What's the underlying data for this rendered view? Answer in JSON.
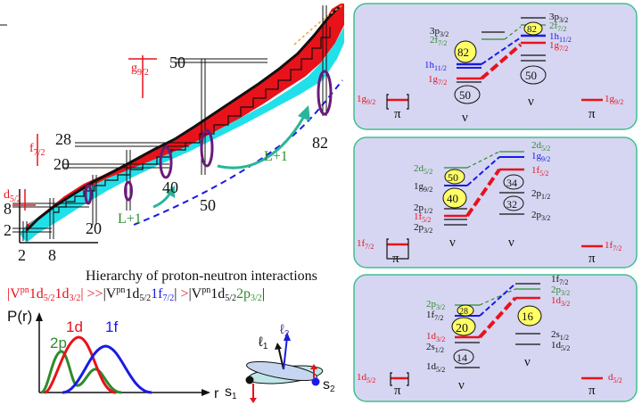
{
  "colors": {
    "red": "#e8121b",
    "blue": "#1a1ae6",
    "green": "#2e8b2e",
    "cyan": "#22e0ea",
    "purple": "#6a1a7a",
    "teal": "#2ab59a",
    "panel_fill": "#d6d6f2",
    "panel_border": "#3fbf8f",
    "yellow": "#ffff66"
  },
  "chart": {
    "magic_numbers": [
      "2",
      "8",
      "20",
      "28",
      "50",
      "82"
    ],
    "axis_left": [
      "2",
      "8",
      "20"
    ],
    "axis_bottom": [
      "2",
      "8",
      "20"
    ],
    "magic_28": "28",
    "magic_20_side": "20",
    "magic_50_top": "50",
    "magic_40": "40",
    "magic_50_bottom": "50",
    "magic_82": "82",
    "orbital_g92": "g",
    "orbital_g92_sub": "9/2",
    "orbital_f72": "f",
    "orbital_f72_sub": "7/2",
    "orbital_d52": "d",
    "orbital_d52_sub": "5/2",
    "lplus1_a": "L+1",
    "lplus1_b": "L+1"
  },
  "hierarchy": {
    "title": "Hierarchy of proton-neutron interactions",
    "bar": "|",
    "V": "V",
    "pn": "pn",
    "t1_a": "1d",
    "t1_a_sub": "5/2",
    "t1_b": "1d",
    "t1_b_sub": "3/2",
    "gg": ">>",
    "t2_a": "1d",
    "t2_a_sub": "5/2",
    "t2_b": "1f",
    "t2_b_sub": "7/2",
    "gt": ">",
    "t3_a": "1d",
    "t3_a_sub": "5/2",
    "t3_b": "2p",
    "t3_b_sub": "3/2"
  },
  "radial": {
    "ylabel": "P(r)",
    "xlabel": "r",
    "labels": [
      "2p",
      "1d",
      "1f"
    ]
  },
  "spin": {
    "l1": "ℓ",
    "l1_sub": "1",
    "l2": "ℓ",
    "l2_sub": "2",
    "s1": "s",
    "s1_sub": "1",
    "s2": "s",
    "s2_sub": "2"
  },
  "panel1": {
    "pi_left": "π",
    "pi_right": "π",
    "nu_left": "ν",
    "nu_right": "ν",
    "left_pi_level": "1g",
    "left_pi_level_sub": "9/2",
    "right_pi_level": "1g",
    "right_pi_level_sub": "9/2",
    "l_3p": "3p",
    "l_3p_sub": "3/2",
    "l_2f": "2f",
    "l_2f_sub": "7/2",
    "l_1h": "1h",
    "l_1h_sub": "11/2",
    "l_1g": "1g",
    "l_1g_sub": "7/2",
    "r_3p": "3p",
    "r_3p_sub": "3/2",
    "r_2f": "2f",
    "r_2f_sub": "7/2",
    "r_1h": "1h",
    "r_1h_sub": "11/2",
    "r_1g": "1g",
    "r_1g_sub": "7/2",
    "circle_82a": "82",
    "circle_82b": "82",
    "circle_50a": "50",
    "circle_50b": "50"
  },
  "panel2": {
    "pi_left": "π",
    "pi_right": "π",
    "nu_left": "ν",
    "nu_right": "ν",
    "left_pi_level": "1f",
    "left_pi_level_sub": "7/2",
    "right_pi_level": "1f",
    "right_pi_level_sub": "7/2",
    "l_2d": "2d",
    "l_2d_sub": "5/2",
    "l_1g": "1g",
    "l_1g_sub": "9/2",
    "l_2p12": "2p",
    "l_2p12_sub": "1/2",
    "l_1f": "1f",
    "l_1f_sub": "5/2",
    "l_2p32": "2p",
    "l_2p32_sub": "3/2",
    "r_2d": "2d",
    "r_2d_sub": "5/2",
    "r_1g": "1g",
    "r_1g_sub": "9/2",
    "r_1f": "1f",
    "r_1f_sub": "5/2",
    "r_2p12": "2p",
    "r_2p12_sub": "1/2",
    "r_2p32": "2p",
    "r_2p32_sub": "3/2",
    "circle_50": "50",
    "circle_40": "40",
    "circle_34": "34",
    "circle_32": "32"
  },
  "panel3": {
    "pi_left": "π",
    "pi_right": "π",
    "nu_left": "ν",
    "nu_right": "ν",
    "left_pi_level": "1d",
    "left_pi_level_sub": "5/2",
    "right_pi_level": "d",
    "right_pi_level_sub": "5/2",
    "l_2p": "2p",
    "l_2p_sub": "3/2",
    "l_1f": "1f",
    "l_1f_sub": "7/2",
    "l_1d32": "1d",
    "l_1d32_sub": "3/2",
    "l_2s": "2s",
    "l_2s_sub": "1/2",
    "l_1d52": "1d",
    "l_1d52_sub": "5/2",
    "r_1f": "1f",
    "r_1f_sub": "7/2",
    "r_2p": "2p",
    "r_2p_sub": "3/2",
    "r_1d32": "1d",
    "r_1d32_sub": "3/2",
    "r_2s": "2s",
    "r_2s_sub": "1/2",
    "r_1d52": "1d",
    "r_1d52_sub": "5/2",
    "circle_28": "28",
    "circle_20": "20",
    "circle_14": "14",
    "circle_16": "16"
  }
}
